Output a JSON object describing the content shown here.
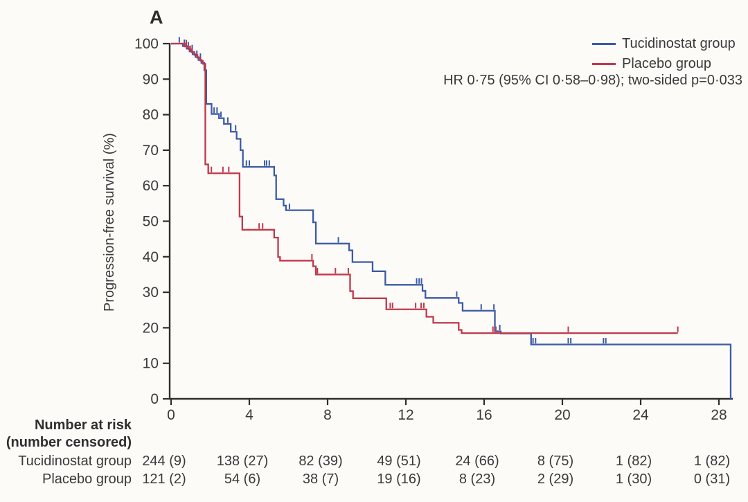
{
  "panel_label": "A",
  "chart_data": {
    "type": "line",
    "subtype": "kaplan-meier-step",
    "title": "A",
    "xlabel": "",
    "ylabel": "Progression-free survival (%)",
    "xlim": [
      0,
      28.8
    ],
    "ylim": [
      0,
      100
    ],
    "xticks": [
      0,
      4,
      8,
      12,
      16,
      20,
      24,
      28
    ],
    "yticks": [
      0,
      10,
      20,
      30,
      40,
      50,
      60,
      70,
      80,
      90,
      100
    ],
    "grid": false,
    "legend_position": "top-right",
    "annotation": "HR 0·75 (95% CI 0·58–0·98); two-sided p=0·033",
    "axis_color": "#2e2e2e",
    "series": [
      {
        "id": "tucidinostat",
        "name": "Tucidinostat group",
        "color": "#3b5ba5",
        "steps": [
          [
            0,
            100
          ],
          [
            0.6,
            99.3
          ],
          [
            0.8,
            98.6
          ],
          [
            0.95,
            97.8
          ],
          [
            1.1,
            97
          ],
          [
            1.25,
            96.2
          ],
          [
            1.4,
            95.4
          ],
          [
            1.55,
            94.6
          ],
          [
            1.7,
            92.5
          ],
          [
            1.8,
            83
          ],
          [
            2.07,
            80.2
          ],
          [
            2.45,
            79
          ],
          [
            2.7,
            77.4
          ],
          [
            3.05,
            75.2
          ],
          [
            3.35,
            73.2
          ],
          [
            3.55,
            70
          ],
          [
            3.67,
            65.3
          ],
          [
            5.27,
            62.9
          ],
          [
            5.37,
            56.2
          ],
          [
            5.75,
            54.4
          ],
          [
            5.87,
            53.1
          ],
          [
            7.26,
            49.7
          ],
          [
            7.4,
            43.7
          ],
          [
            9.1,
            41.8
          ],
          [
            9.27,
            38.5
          ],
          [
            10.3,
            35.9
          ],
          [
            10.95,
            32.1
          ],
          [
            12.85,
            30.4
          ],
          [
            13.0,
            28.4
          ],
          [
            14.7,
            27
          ],
          [
            14.9,
            24.8
          ],
          [
            16.55,
            19
          ],
          [
            16.85,
            18.4
          ],
          [
            18.4,
            15.3
          ],
          [
            28.6,
            0
          ]
        ],
        "censors": [
          [
            0.42,
            100
          ],
          [
            0.68,
            99.3
          ],
          [
            0.88,
            98.6
          ],
          [
            1.08,
            97.8
          ],
          [
            1.32,
            96.2
          ],
          [
            1.5,
            95.4
          ],
          [
            2.2,
            80.2
          ],
          [
            2.35,
            80.2
          ],
          [
            2.55,
            79
          ],
          [
            2.9,
            77.4
          ],
          [
            3.3,
            75.2
          ],
          [
            3.85,
            65.3
          ],
          [
            4.0,
            65.3
          ],
          [
            4.78,
            65.3
          ],
          [
            4.88,
            65.3
          ],
          [
            5.02,
            65.3
          ],
          [
            6.05,
            53.1
          ],
          [
            8.55,
            43.7
          ],
          [
            12.55,
            32.1
          ],
          [
            12.68,
            32.1
          ],
          [
            12.8,
            32.1
          ],
          [
            14.6,
            28.4
          ],
          [
            15.85,
            24.8
          ],
          [
            16.5,
            24.8
          ],
          [
            16.8,
            19
          ],
          [
            18.5,
            15.3
          ],
          [
            18.63,
            15.3
          ],
          [
            20.3,
            15.3
          ],
          [
            20.43,
            15.3
          ],
          [
            22.1,
            15.3
          ],
          [
            22.22,
            15.3
          ]
        ]
      },
      {
        "id": "placebo",
        "name": "Placebo group",
        "color": "#c2374a",
        "steps": [
          [
            0,
            100
          ],
          [
            0.7,
            99.2
          ],
          [
            0.9,
            98.4
          ],
          [
            1.05,
            97.6
          ],
          [
            1.2,
            96.8
          ],
          [
            1.35,
            96
          ],
          [
            1.5,
            95.2
          ],
          [
            1.62,
            94.3
          ],
          [
            1.75,
            66
          ],
          [
            1.9,
            63.5
          ],
          [
            3.5,
            51.3
          ],
          [
            3.64,
            47.6
          ],
          [
            5.27,
            45.4
          ],
          [
            5.47,
            39.9
          ],
          [
            5.57,
            38.9
          ],
          [
            7.26,
            37.3
          ],
          [
            7.4,
            35
          ],
          [
            9.15,
            30.3
          ],
          [
            9.3,
            28.3
          ],
          [
            11.0,
            25.2
          ],
          [
            13.05,
            23.1
          ],
          [
            13.4,
            21.4
          ],
          [
            14.7,
            19.4
          ],
          [
            14.85,
            18.5
          ],
          [
            25.9,
            18.5
          ]
        ],
        "censors": [
          [
            0.78,
            99.2
          ],
          [
            0.98,
            97.6
          ],
          [
            2.06,
            63.5
          ],
          [
            2.65,
            63.5
          ],
          [
            2.95,
            63.5
          ],
          [
            4.5,
            47.6
          ],
          [
            4.68,
            47.6
          ],
          [
            7.2,
            38.9
          ],
          [
            7.48,
            35
          ],
          [
            8.4,
            35
          ],
          [
            9.06,
            35
          ],
          [
            11.2,
            25.2
          ],
          [
            11.32,
            25.2
          ],
          [
            12.5,
            25.2
          ],
          [
            12.78,
            25.2
          ],
          [
            12.92,
            25.2
          ],
          [
            16.45,
            18.5
          ],
          [
            16.6,
            18.5
          ],
          [
            20.3,
            18.5
          ],
          [
            25.9,
            18.5
          ]
        ]
      }
    ],
    "risk_table": {
      "header_line1": "Number at risk",
      "header_line2": "(number censored)",
      "times": [
        0,
        4,
        8,
        12,
        16,
        20,
        24,
        28
      ],
      "rows": [
        {
          "id": "tucidinostat",
          "name": "Tucidinostat group",
          "values": [
            "244 (9)",
            "138 (27)",
            "82 (39)",
            "49 (51)",
            "24 (66)",
            "8 (75)",
            "1 (82)",
            "1 (82)"
          ]
        },
        {
          "id": "placebo",
          "name": "Placebo group",
          "values": [
            "121 (2)",
            "54 (6)",
            "38 (7)",
            "19 (16)",
            "8 (23)",
            "2 (29)",
            "1 (30)",
            "0 (31)"
          ]
        }
      ]
    }
  }
}
